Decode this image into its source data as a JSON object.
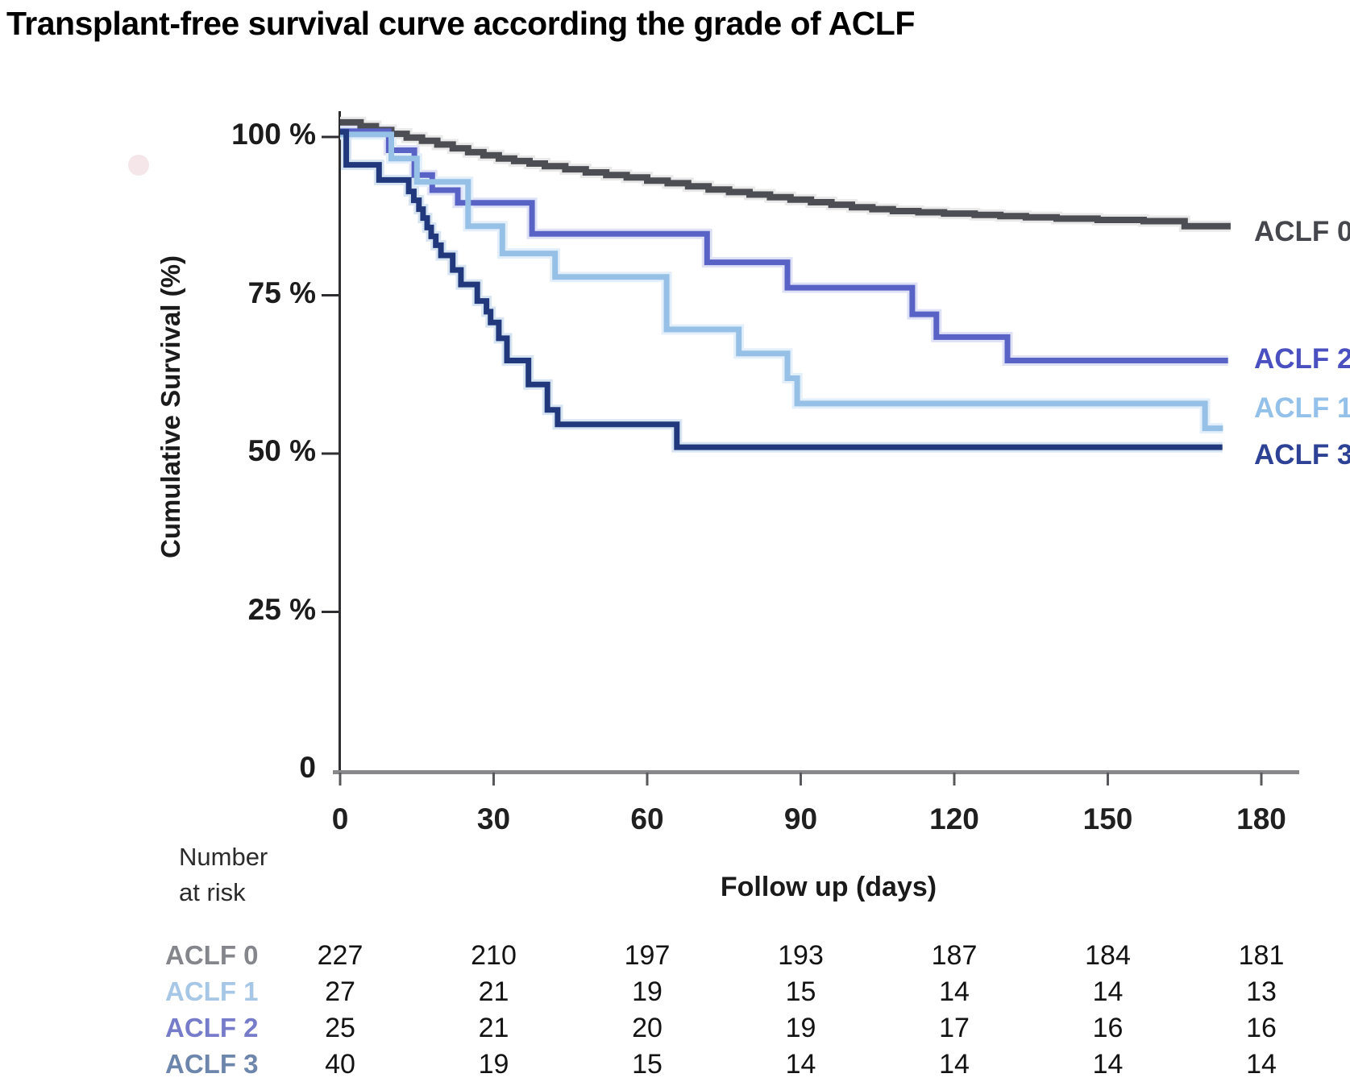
{
  "title": "Transplant-free survival curve according the grade of ACLF",
  "y_axis": {
    "label": "Cumulative Survival (%)"
  },
  "x_axis": {
    "label": "Follow up (days)"
  },
  "number_at_risk": {
    "header_line1": "Number",
    "header_line2": "at risk",
    "columns": [
      0,
      30,
      60,
      90,
      120,
      150,
      180
    ],
    "rows": [
      {
        "label": "ACLF 0",
        "color": "#85868b",
        "values": [
          227,
          210,
          197,
          193,
          187,
          184,
          181
        ]
      },
      {
        "label": "ACLF 1",
        "color": "#a6c7e6",
        "values": [
          27,
          21,
          19,
          15,
          14,
          14,
          13
        ]
      },
      {
        "label": "ACLF 2",
        "color": "#777cca",
        "values": [
          25,
          21,
          20,
          19,
          17,
          16,
          16
        ]
      },
      {
        "label": "ACLF 3",
        "color": "#6d86ab",
        "values": [
          40,
          19,
          15,
          14,
          14,
          14,
          14
        ]
      }
    ]
  },
  "chart_data": {
    "type": "line",
    "subtype": "kaplan-meier-step",
    "title": "Transplant-free survival curve according the grade of ACLF",
    "xlabel": "Follow up (days)",
    "ylabel": "Cumulative Survival (%)",
    "xlim": [
      0,
      186
    ],
    "ylim": [
      0,
      104
    ],
    "grid": false,
    "legend_position": "right-end-of-curves",
    "x_ticks": [
      {
        "value": 0,
        "label": "0"
      },
      {
        "value": 30,
        "label": "30"
      },
      {
        "value": 60,
        "label": "60"
      },
      {
        "value": 90,
        "label": "90"
      },
      {
        "value": 120,
        "label": "120"
      },
      {
        "value": 150,
        "label": "150"
      },
      {
        "value": 180,
        "label": "180"
      }
    ],
    "y_ticks": [
      {
        "value": 100,
        "label": "100 %"
      },
      {
        "value": 75,
        "label": "75 %"
      },
      {
        "value": 50,
        "label": "50 %"
      },
      {
        "value": 25,
        "label": "25 %"
      },
      {
        "value": 0,
        "label": "0"
      }
    ],
    "series": [
      {
        "name": "ACLF 0",
        "color": "#4d4e53",
        "halo": "#e9e9ea",
        "width": 8,
        "label_color": "#46474c",
        "label_value": 84.9,
        "end_day": 174,
        "points": [
          [
            0,
            102.3
          ],
          [
            4,
            101.7
          ],
          [
            7,
            101.1
          ],
          [
            10,
            100.5
          ],
          [
            13,
            99.9
          ],
          [
            16,
            99.4
          ],
          [
            19,
            98.8
          ],
          [
            22,
            98.2
          ],
          [
            25,
            97.6
          ],
          [
            28,
            97.1
          ],
          [
            31,
            96.6
          ],
          [
            34,
            96.2
          ],
          [
            37,
            95.8
          ],
          [
            40,
            95.4
          ],
          [
            44,
            94.9
          ],
          [
            48,
            94.4
          ],
          [
            52,
            94.0
          ],
          [
            56,
            93.6
          ],
          [
            60,
            93.1
          ],
          [
            64,
            92.7
          ],
          [
            68,
            92.2
          ],
          [
            72,
            91.7
          ],
          [
            76,
            91.3
          ],
          [
            80,
            90.9
          ],
          [
            84,
            90.5
          ],
          [
            88,
            90.1
          ],
          [
            92,
            89.7
          ],
          [
            96,
            89.3
          ],
          [
            100,
            88.9
          ],
          [
            104,
            88.6
          ],
          [
            108,
            88.3
          ],
          [
            113,
            88.1
          ],
          [
            118,
            87.9
          ],
          [
            124,
            87.7
          ],
          [
            129,
            87.5
          ],
          [
            134,
            87.3
          ],
          [
            140,
            87.1
          ],
          [
            148,
            86.9
          ],
          [
            157,
            86.7
          ],
          [
            165,
            85.9
          ]
        ]
      },
      {
        "name": "ACLF 2",
        "color": "#5963c5",
        "halo": "#dfe2f6",
        "width": 7,
        "label_color": "#4a50c0",
        "label_value": 64.7,
        "end_day": 173.5,
        "points": [
          [
            0,
            100.9
          ],
          [
            9.5,
            97.9
          ],
          [
            14.5,
            94.0
          ],
          [
            18,
            91.6
          ],
          [
            23,
            89.6
          ],
          [
            37.5,
            84.7
          ],
          [
            71.7,
            80.2
          ],
          [
            87.4,
            76.2
          ],
          [
            111.8,
            72.0
          ],
          [
            116.5,
            68.4
          ],
          [
            130.4,
            64.7
          ]
        ]
      },
      {
        "name": "ACLF 1",
        "color": "#96c0e6",
        "halo": "#e3effb",
        "width": 7,
        "label_color": "#93c1e9",
        "label_value": 57.0,
        "end_day": 172.5,
        "points": [
          [
            0,
            100.4
          ],
          [
            10,
            96.6
          ],
          [
            15,
            92.9
          ],
          [
            25,
            85.9
          ],
          [
            31.7,
            81.6
          ],
          [
            42,
            77.9
          ],
          [
            63.8,
            69.6
          ],
          [
            77.9,
            65.8
          ],
          [
            87.4,
            61.9
          ],
          [
            89.3,
            57.9
          ],
          [
            169,
            54.0
          ]
        ]
      },
      {
        "name": "ACLF 3",
        "color": "#21397c",
        "halo": "#d7e5f3",
        "width": 7,
        "label_color": "#2d4294",
        "label_value": 49.6,
        "end_day": 172.4,
        "points": [
          [
            0,
            100.8
          ],
          [
            1.2,
            95.6
          ],
          [
            7.6,
            93.2
          ],
          [
            13.4,
            91.4
          ],
          [
            14.4,
            90.0
          ],
          [
            15.4,
            88.6
          ],
          [
            16.2,
            87.2
          ],
          [
            17,
            85.7
          ],
          [
            17.8,
            84.3
          ],
          [
            18.7,
            82.9
          ],
          [
            19.7,
            81.3
          ],
          [
            22,
            79.0
          ],
          [
            23.6,
            76.7
          ],
          [
            26.8,
            74.1
          ],
          [
            28.6,
            72.4
          ],
          [
            29.4,
            70.7
          ],
          [
            31,
            68.2
          ],
          [
            32.6,
            64.7
          ],
          [
            36.8,
            60.9
          ],
          [
            40.5,
            56.9
          ],
          [
            42.5,
            54.6
          ],
          [
            65.8,
            51.0
          ]
        ]
      }
    ]
  }
}
